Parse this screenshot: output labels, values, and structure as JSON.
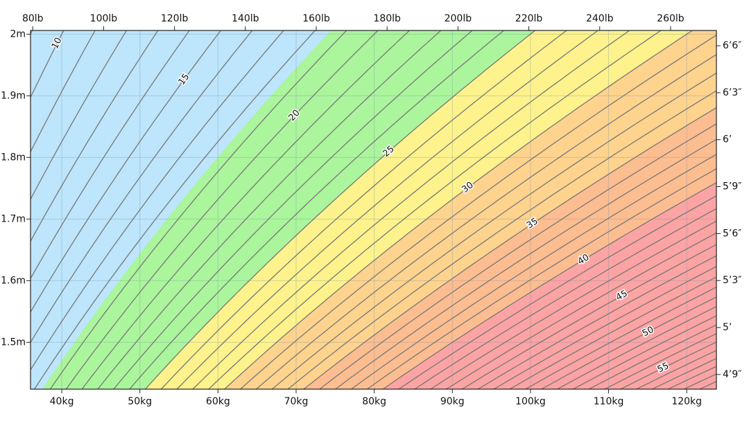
{
  "chart_data": {
    "type": "bmi",
    "xlim": [
      36,
      123.8
    ],
    "ylim": [
      1.424,
      2.006
    ],
    "xticks": [
      {
        "value": 40,
        "label": "40kg"
      },
      {
        "value": 50,
        "label": "50kg"
      },
      {
        "value": 60,
        "label": "60kg"
      },
      {
        "value": 70,
        "label": "70kg"
      },
      {
        "value": 80,
        "label": "80kg"
      },
      {
        "value": 90,
        "label": "90kg"
      },
      {
        "value": 100,
        "label": "100kg"
      },
      {
        "value": 110,
        "label": "110kg"
      },
      {
        "value": 120,
        "label": "120kg"
      }
    ],
    "x2ticks": [
      {
        "value": 80,
        "label": "80lb"
      },
      {
        "value": 100,
        "label": "100lb"
      },
      {
        "value": 120,
        "label": "120lb"
      },
      {
        "value": 140,
        "label": "140lb"
      },
      {
        "value": 160,
        "label": "160lb"
      },
      {
        "value": 180,
        "label": "180lb"
      },
      {
        "value": 200,
        "label": "200lb"
      },
      {
        "value": 220,
        "label": "220lb"
      },
      {
        "value": 240,
        "label": "240lb"
      },
      {
        "value": 260,
        "label": "260lb"
      }
    ],
    "yticks": [
      {
        "value": 1.5,
        "label": "1.5m"
      },
      {
        "value": 1.6,
        "label": "1.6m"
      },
      {
        "value": 1.7,
        "label": "1.7m"
      },
      {
        "value": 1.8,
        "label": "1.8m"
      },
      {
        "value": 1.9,
        "label": "1.9m"
      },
      {
        "value": 2,
        "label": "2m"
      }
    ],
    "y2ticks": [
      {
        "value": 57,
        "label": "4’9″"
      },
      {
        "value": 60,
        "label": "5’"
      },
      {
        "value": 63,
        "label": "5’3″"
      },
      {
        "value": 66,
        "label": "5’6″"
      },
      {
        "value": 69,
        "label": "5’9″"
      },
      {
        "value": 72,
        "label": "6’"
      },
      {
        "value": 75,
        "label": "6’3″"
      },
      {
        "value": 78,
        "label": "6’6″"
      }
    ],
    "zone_bounds": [
      18.5,
      25,
      30,
      35,
      40
    ],
    "zone_colors": [
      "#bde5fb",
      "#abf59c",
      "#fdf28c",
      "#fdd38e",
      "#fcbd90",
      "#fca3a3"
    ],
    "contour_levels": [
      9,
      10,
      11,
      12,
      13,
      14,
      15,
      16,
      17,
      18,
      19,
      20,
      21,
      22,
      23,
      24,
      25,
      26,
      27,
      28,
      29,
      30,
      31,
      32,
      33,
      34,
      35,
      36,
      37,
      38,
      39,
      40,
      41,
      42,
      43,
      44,
      45,
      46,
      47,
      48,
      49,
      50,
      51,
      52,
      53,
      54,
      55,
      56,
      57,
      58,
      59,
      60,
      61
    ],
    "contour_labels": [
      10,
      15,
      20,
      25,
      30,
      35,
      40,
      45,
      50,
      55
    ],
    "grid": true
  }
}
